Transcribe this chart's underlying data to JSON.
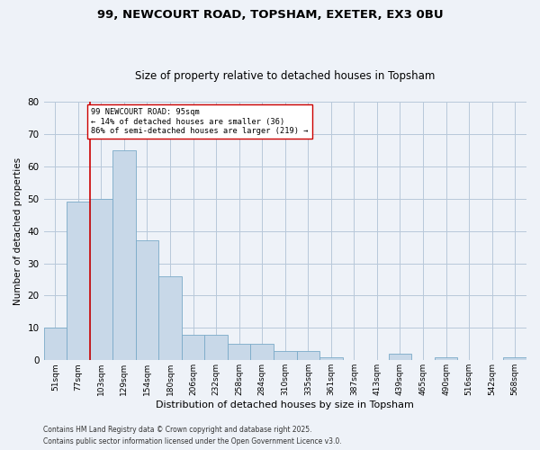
{
  "title1": "99, NEWCOURT ROAD, TOPSHAM, EXETER, EX3 0BU",
  "title2": "Size of property relative to detached houses in Topsham",
  "xlabel": "Distribution of detached houses by size in Topsham",
  "ylabel": "Number of detached properties",
  "categories": [
    "51sqm",
    "77sqm",
    "103sqm",
    "129sqm",
    "154sqm",
    "180sqm",
    "206sqm",
    "232sqm",
    "258sqm",
    "284sqm",
    "310sqm",
    "335sqm",
    "361sqm",
    "387sqm",
    "413sqm",
    "439sqm",
    "465sqm",
    "490sqm",
    "516sqm",
    "542sqm",
    "568sqm"
  ],
  "values": [
    10,
    49,
    50,
    65,
    37,
    26,
    8,
    8,
    5,
    5,
    3,
    3,
    1,
    0,
    0,
    2,
    0,
    1,
    0,
    0,
    1
  ],
  "bar_color": "#c8d8e8",
  "bar_edge_color": "#7aaac8",
  "grid_color": "#b8c8da",
  "background_color": "#eef2f8",
  "vline_x": 1.5,
  "vline_color": "#cc0000",
  "annotation_text": "99 NEWCOURT ROAD: 95sqm\n← 14% of detached houses are smaller (36)\n86% of semi-detached houses are larger (219) →",
  "annotation_box_color": "#ffffff",
  "annotation_box_edge": "#cc0000",
  "ylim": [
    0,
    80
  ],
  "yticks": [
    0,
    10,
    20,
    30,
    40,
    50,
    60,
    70,
    80
  ],
  "footnote1": "Contains HM Land Registry data © Crown copyright and database right 2025.",
  "footnote2": "Contains public sector information licensed under the Open Government Licence v3.0."
}
